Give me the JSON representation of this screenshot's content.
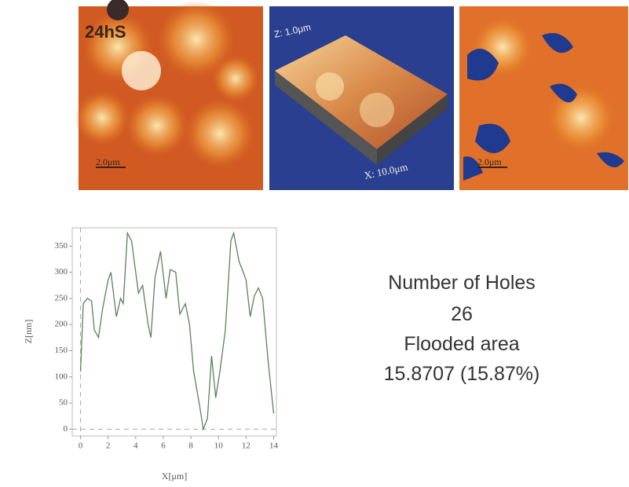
{
  "images": [
    {
      "label": "24hS",
      "scale": "2.0μm"
    },
    {
      "z_label": "Z: 1.0μm",
      "x_label": "X: 10.0μm"
    },
    {
      "scale": "2.0μm"
    }
  ],
  "chart_data": {
    "type": "line",
    "x_label": "X[μm]",
    "y_label": "Z[nm]",
    "x": [
      0,
      0.2,
      0.5,
      0.8,
      1.0,
      1.3,
      1.6,
      2.0,
      2.2,
      2.6,
      2.9,
      3.1,
      3.4,
      3.7,
      4.0,
      4.2,
      4.5,
      4.9,
      5.1,
      5.4,
      5.8,
      6.2,
      6.5,
      6.9,
      7.2,
      7.6,
      7.9,
      8.2,
      8.6,
      8.9,
      9.2,
      9.5,
      9.8,
      10.1,
      10.5,
      10.9,
      11.1,
      11.5,
      11.8,
      12.0,
      12.3,
      12.6,
      12.9,
      13.2,
      13.6,
      14.0
    ],
    "series": [
      {
        "color": "#5f7f5f",
        "values": [
          110,
          240,
          250,
          245,
          190,
          175,
          230,
          285,
          300,
          215,
          250,
          240,
          375,
          360,
          300,
          260,
          275,
          200,
          175,
          290,
          340,
          250,
          305,
          300,
          220,
          240,
          200,
          110,
          50,
          0,
          20,
          140,
          60,
          110,
          190,
          360,
          375,
          320,
          300,
          285,
          215,
          255,
          270,
          250,
          130,
          30
        ]
      }
    ],
    "xlim": [
      -0.6,
      14.2
    ],
    "xticks": [
      0,
      2,
      4,
      6,
      8,
      10,
      12,
      14
    ],
    "ylim": [
      -13,
      385
    ],
    "yticks": [
      0,
      50,
      100,
      150,
      200,
      250,
      300,
      350
    ]
  },
  "stats": {
    "holes_label": "Number of Holes",
    "holes": "26",
    "area_label": "Flooded area",
    "area": "15.8707 (15.87%)"
  }
}
